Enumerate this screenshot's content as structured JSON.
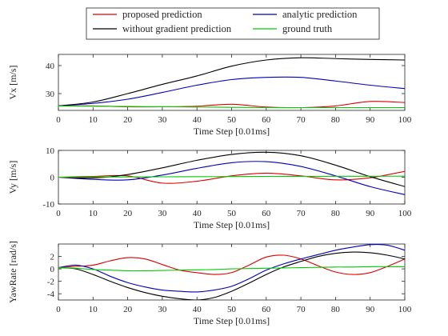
{
  "chart_data": [
    {
      "type": "line",
      "xlabel": "Time Step [0.01ms]",
      "ylabel": "Vx [m/s]",
      "xlim": [
        0,
        100
      ],
      "ylim": [
        24,
        44
      ],
      "xticks": [
        0,
        10,
        20,
        30,
        40,
        50,
        60,
        70,
        80,
        90,
        100
      ],
      "yticks": [
        30,
        40
      ],
      "grid": false,
      "x": [
        0,
        10,
        20,
        30,
        40,
        50,
        60,
        70,
        80,
        90,
        100
      ],
      "series": [
        {
          "name": "proposed prediction",
          "color": "#dd0000",
          "values": [
            25.6,
            25.6,
            25.3,
            25.3,
            25.5,
            26.2,
            25.2,
            25.0,
            25.6,
            27.2,
            26.8
          ]
        },
        {
          "name": "analytic prediction",
          "color": "#0000bb",
          "values": [
            25.6,
            26.5,
            28.0,
            30.4,
            33.0,
            35.0,
            35.8,
            35.8,
            34.5,
            33.0,
            31.8
          ]
        },
        {
          "name": "without gradient prediction",
          "color": "#000000",
          "values": [
            25.6,
            27.0,
            30.0,
            33.3,
            36.3,
            39.8,
            42.0,
            42.8,
            42.5,
            42.2,
            42.0
          ]
        },
        {
          "name": "ground truth",
          "color": "#00cc00",
          "values": [
            25.6,
            25.5,
            25.4,
            25.3,
            25.2,
            25.1,
            25.0,
            25.0,
            25.0,
            25.0,
            25.0
          ]
        }
      ]
    },
    {
      "type": "line",
      "xlabel": "Time Step [0.01ms]",
      "ylabel": "Vy [m/s]",
      "xlim": [
        0,
        100
      ],
      "ylim": [
        -10,
        10
      ],
      "xticks": [
        0,
        10,
        20,
        30,
        40,
        50,
        60,
        70,
        80,
        90,
        100
      ],
      "yticks": [
        -10,
        0,
        10
      ],
      "grid": false,
      "x": [
        0,
        10,
        20,
        30,
        40,
        50,
        60,
        70,
        80,
        90,
        100
      ],
      "series": [
        {
          "name": "proposed prediction",
          "color": "#dd0000",
          "values": [
            0,
            0.3,
            0.5,
            -2.2,
            -1.5,
            0.5,
            1.5,
            0.5,
            -1.0,
            -0.2,
            2.2
          ]
        },
        {
          "name": "analytic prediction",
          "color": "#0000bb",
          "values": [
            0,
            -0.8,
            -1.0,
            0.8,
            3.3,
            5.4,
            5.8,
            4.0,
            0.5,
            -3.5,
            -6.5
          ]
        },
        {
          "name": "without gradient prediction",
          "color": "#000000",
          "values": [
            0,
            -0.3,
            1.0,
            3.5,
            6.3,
            8.5,
            9.3,
            8.0,
            4.5,
            0.2,
            -3.5
          ]
        },
        {
          "name": "ground truth",
          "color": "#00cc00",
          "values": [
            0,
            0.05,
            0.1,
            0.15,
            0.2,
            0.25,
            0.3,
            0.32,
            0.34,
            0.36,
            0.4
          ]
        }
      ]
    },
    {
      "type": "line",
      "xlabel": "Time Step [0.01ms]",
      "ylabel": "YawRate [rad/s]",
      "xlim": [
        0,
        100
      ],
      "ylim": [
        -5,
        4
      ],
      "xticks": [
        0,
        10,
        20,
        30,
        40,
        50,
        60,
        70,
        80,
        90,
        100
      ],
      "yticks": [
        -4,
        -2,
        0,
        2
      ],
      "grid": false,
      "x": [
        0,
        5,
        10,
        15,
        20,
        25,
        30,
        35,
        40,
        45,
        50,
        55,
        60,
        65,
        70,
        75,
        80,
        85,
        90,
        95,
        100
      ],
      "series": [
        {
          "name": "proposed prediction",
          "color": "#dd0000",
          "values": [
            0.2,
            0.4,
            0.6,
            1.3,
            1.8,
            1.6,
            0.7,
            -0.2,
            -0.6,
            -0.9,
            -0.6,
            0.6,
            1.9,
            2.2,
            1.6,
            0.5,
            -0.5,
            -0.9,
            -0.6,
            0.4,
            1.6
          ]
        },
        {
          "name": "analytic prediction",
          "color": "#0000bb",
          "values": [
            0.2,
            0.6,
            0,
            -1.2,
            -2.2,
            -2.9,
            -3.4,
            -3.6,
            -3.7,
            -3.4,
            -2.8,
            -1.6,
            -0.2,
            0.8,
            1.6,
            2.3,
            3.0,
            3.5,
            3.9,
            3.8,
            3.0
          ]
        },
        {
          "name": "without gradient prediction",
          "color": "#000000",
          "values": [
            0.2,
            0,
            -0.9,
            -2.0,
            -3.0,
            -3.8,
            -4.4,
            -4.8,
            -5.0,
            -4.6,
            -3.6,
            -2.3,
            -0.9,
            0.3,
            1.2,
            2.0,
            2.5,
            2.7,
            2.6,
            2.2,
            1.6
          ]
        },
        {
          "name": "ground truth",
          "color": "#00cc00",
          "values": [
            0.2,
            0.1,
            -0.1,
            -0.2,
            -0.3,
            -0.3,
            -0.25,
            -0.2,
            -0.15,
            -0.1,
            0,
            0.05,
            0.1,
            0.15,
            0.2,
            0.25,
            0.3,
            0.3,
            0.35,
            0.35,
            0.35
          ]
        }
      ]
    }
  ],
  "legend": {
    "placement": "top-center",
    "items": [
      {
        "label": "proposed prediction",
        "color": "#dd0000"
      },
      {
        "label": "analytic prediction",
        "color": "#0000bb"
      },
      {
        "label": "without gradient prediction",
        "color": "#000000"
      },
      {
        "label": "ground truth",
        "color": "#00cc00"
      }
    ]
  }
}
